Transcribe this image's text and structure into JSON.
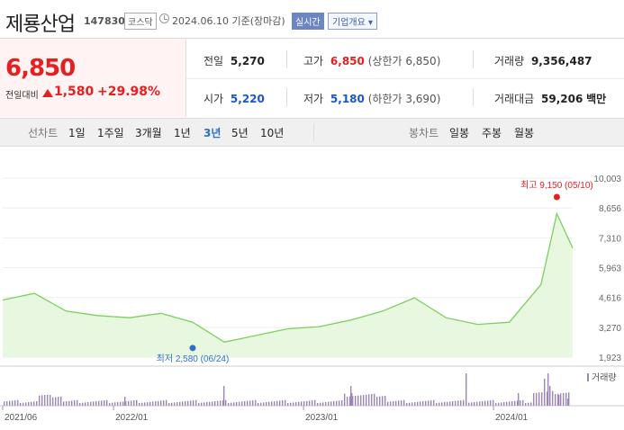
{
  "header": {
    "name": "제룡산업",
    "code": "147830",
    "market": "코스닥",
    "date_text": "2024.06.10 기준(장마감)",
    "realtime_label": "실시간",
    "company_info_label": "기업개요 ▾"
  },
  "summary": {
    "price": "6,850",
    "change_label": "전일대비",
    "change": "1,580",
    "change_pct": "+29.98%"
  },
  "stats": {
    "prev_label": "전일",
    "prev": "5,270",
    "high_label": "고가",
    "high": "6,850",
    "upper_limit": "(상한가 6,850)",
    "volume_label": "거래량",
    "volume": "9,356,487",
    "open_label": "시가",
    "open": "5,220",
    "low_label": "저가",
    "low": "5,180",
    "lower_limit": "(하한가 3,690)",
    "amount_label": "거래대금",
    "amount": "59,206",
    "amount_unit": "백만"
  },
  "toolbar": {
    "line_label": "선차트",
    "periods": [
      "1일",
      "1주일",
      "3개월",
      "1년",
      "3년",
      "5년",
      "10년"
    ],
    "selected_period": "3년",
    "candle_label": "봉차트",
    "candles": [
      "일봉",
      "주봉",
      "월봉"
    ]
  },
  "chart_data": {
    "type": "area",
    "x": [
      "2021/06",
      "2021/08",
      "2021/10",
      "2021/12",
      "2022/02",
      "2022/04",
      "2022/06",
      "2022/08",
      "2022/10",
      "2022/12",
      "2023/02",
      "2023/04",
      "2023/06",
      "2023/08",
      "2023/10",
      "2023/12",
      "2024/02",
      "2024/04",
      "2024/05",
      "2024/06"
    ],
    "y": [
      4500,
      4800,
      4000,
      3800,
      3700,
      3900,
      3500,
      2600,
      2900,
      3200,
      3300,
      3600,
      4000,
      4600,
      3700,
      3400,
      3500,
      5200,
      8400,
      6850
    ],
    "ylim": [
      1923,
      10003
    ],
    "y_ticks": [
      "10,003",
      "8,656",
      "7,310",
      "5,963",
      "4,616",
      "3,270",
      "1,923"
    ],
    "x_ticks": [
      "2021/06",
      "2022/01",
      "2023/01",
      "2024/01"
    ],
    "max_label": "최고 9,150 (05/10)",
    "min_label": "최저 2,580 (06/24)",
    "volume_label": "거래량",
    "colors": {
      "line": "#7cd05c",
      "fill": "#e8f7df",
      "volume": "#9c85b8",
      "max": "#e52020",
      "min": "#2f6fc4"
    }
  }
}
